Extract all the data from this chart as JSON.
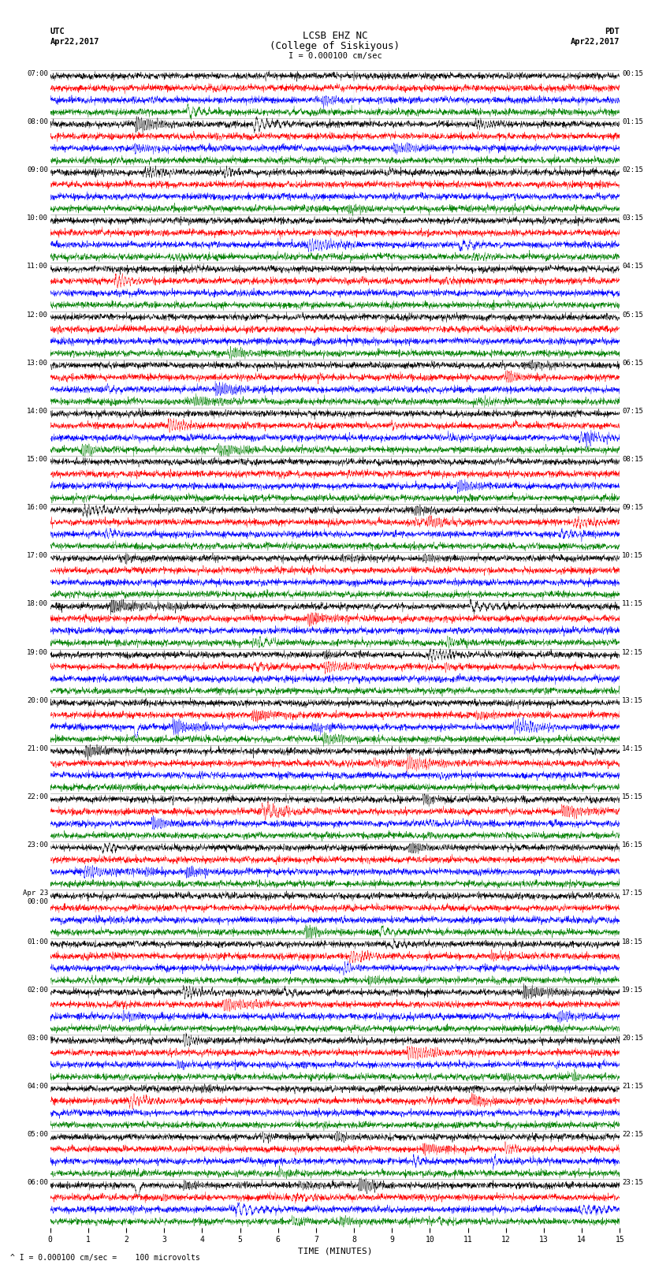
{
  "title_line1": "LCSB EHZ NC",
  "title_line2": "(College of Siskiyous)",
  "title_scale": "I = 0.000100 cm/sec",
  "label_utc": "UTC",
  "label_pdt": "PDT",
  "label_date_left": "Apr22,2017",
  "label_date_right": "Apr22,2017",
  "xlabel": "TIME (MINUTES)",
  "bottom_note": "^ I = 0.000100 cm/sec =    100 microvolts",
  "colors": [
    "black",
    "red",
    "blue",
    "green"
  ],
  "time_labels_left": [
    "07:00",
    "08:00",
    "09:00",
    "10:00",
    "11:00",
    "12:00",
    "13:00",
    "14:00",
    "15:00",
    "16:00",
    "17:00",
    "18:00",
    "19:00",
    "20:00",
    "21:00",
    "22:00",
    "23:00",
    "Apr 23\n00:00",
    "01:00",
    "02:00",
    "03:00",
    "04:00",
    "05:00",
    "06:00"
  ],
  "time_labels_right": [
    "00:15",
    "01:15",
    "02:15",
    "03:15",
    "04:15",
    "05:15",
    "06:15",
    "07:15",
    "08:15",
    "09:15",
    "10:15",
    "11:15",
    "12:15",
    "13:15",
    "14:15",
    "15:15",
    "16:15",
    "17:15",
    "18:15",
    "19:15",
    "20:15",
    "21:15",
    "22:15",
    "23:15"
  ],
  "n_hours": 24,
  "traces_per_hour": 4,
  "minutes_per_trace": 15,
  "samples_per_trace": 3000,
  "bg_color": "white",
  "trace_amp": 0.42,
  "noise_std": 0.1,
  "lw": 0.3
}
